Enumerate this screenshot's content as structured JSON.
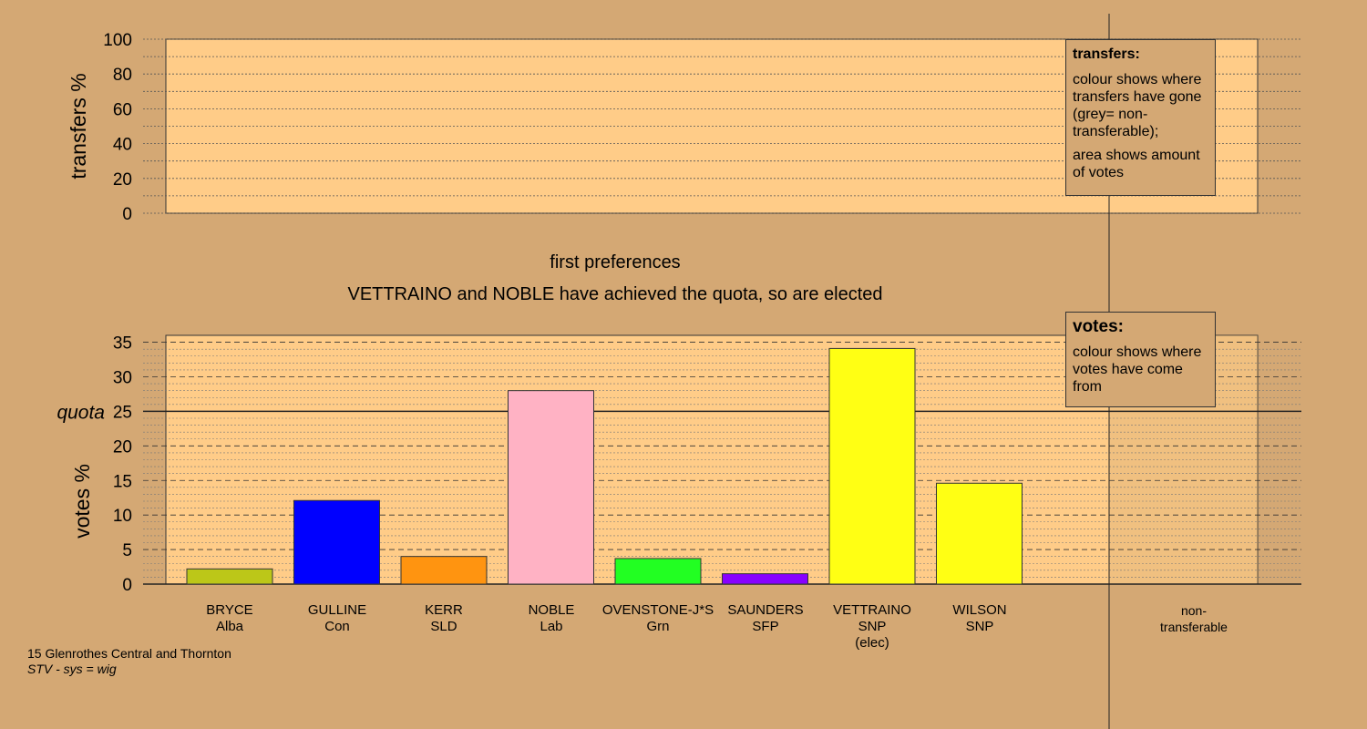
{
  "top_chart": {
    "ylabel": "transfers %",
    "ticks": [
      "0",
      "20",
      "40",
      "60",
      "80",
      "100"
    ],
    "legend": {
      "title": "transfers:",
      "line1": "colour shows where transfers have gone (grey= non-transferable);",
      "line2": "area shows amount of votes"
    }
  },
  "stage_title": "first preferences",
  "stage_subtitle": "VETTRAINO and NOBLE have achieved the quota, so are elected",
  "bottom_chart": {
    "ylabel": "votes %",
    "quota_label": "quota",
    "ticks": [
      "0",
      "5",
      "10",
      "15",
      "20",
      "25",
      "30",
      "35"
    ],
    "legend": {
      "title": "votes:",
      "line1": "colour shows where votes have come from"
    }
  },
  "candidates": [
    {
      "name": "BRYCE",
      "party": "Alba",
      "note": ""
    },
    {
      "name": "GULLINE",
      "party": "Con",
      "note": ""
    },
    {
      "name": "KERR",
      "party": "SLD",
      "note": ""
    },
    {
      "name": "NOBLE",
      "party": "Lab",
      "note": ""
    },
    {
      "name": "OVENSTONE-J*S",
      "party": "Grn",
      "note": ""
    },
    {
      "name": "SAUNDERS",
      "party": "SFP",
      "note": ""
    },
    {
      "name": "VETTRAINO",
      "party": "SNP",
      "note": "(elec)"
    },
    {
      "name": "WILSON",
      "party": "SNP",
      "note": ""
    }
  ],
  "nontransferable": {
    "line1": "non-",
    "line2": "transferable"
  },
  "footer": {
    "line1": "15 Glenrothes Central and Thornton",
    "line2": "STV - sys = wig"
  },
  "chart_data": [
    {
      "type": "bar",
      "title": "",
      "ylabel": "transfers %",
      "ylim": [
        0,
        100
      ],
      "categories": [],
      "values": []
    },
    {
      "type": "bar",
      "title": "first preferences",
      "subtitle": "VETTRAINO and NOBLE have achieved the quota, so are elected",
      "ylabel": "votes %",
      "ylim": [
        0,
        36
      ],
      "quota": 25,
      "categories": [
        "BRYCE",
        "GULLINE",
        "KERR",
        "NOBLE",
        "OVENSTONE-J*S",
        "SAUNDERS",
        "VETTRAINO",
        "WILSON"
      ],
      "values": [
        2.2,
        12.1,
        4.0,
        28.0,
        3.7,
        1.5,
        34.1,
        14.6
      ],
      "colors": [
        "#bcc718",
        "#0000ff",
        "#ff9410",
        "#ffb2c4",
        "#22ff22",
        "#8800ff",
        "#ffff14",
        "#ffff14"
      ],
      "nontransferable": 0
    }
  ]
}
